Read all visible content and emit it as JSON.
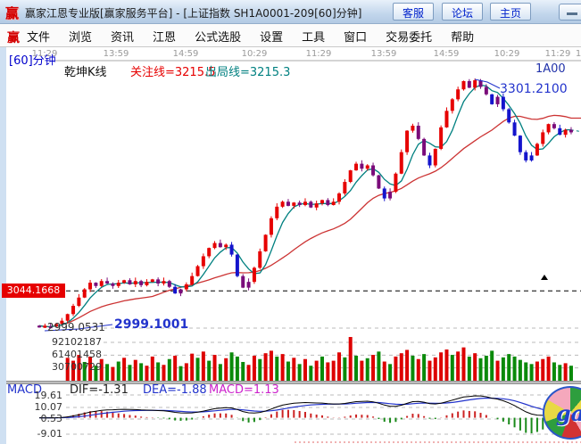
{
  "window": {
    "logo": "赢",
    "title": "赢家江恩专业版[赢家服务平台] - [上证指数  SH1A0001-209[60]分钟]",
    "buttons": [
      "客服",
      "论坛",
      "主页"
    ]
  },
  "menu": {
    "logo": "赢",
    "items": [
      "文件",
      "浏览",
      "资讯",
      "江恩",
      "公式选股",
      "设置",
      "工具",
      "窗口",
      "交易委托",
      "帮助"
    ]
  },
  "chart_header": {
    "period": "[60]分钟",
    "kline_label": "乾坤K线",
    "attention_line": "关注线=3215.5",
    "exit_line": "出局线=3215.3",
    "symbol_short": "1A00"
  },
  "time_axis": [
    "11:29",
    "13:59",
    "14:59",
    "10:29",
    "11:29",
    "13:59",
    "14:59",
    "10:29",
    "11:29",
    "1"
  ],
  "price_labels": {
    "marker_box": "3044.1668",
    "low_left": "2999.0531",
    "low_annotation": "2999.1001",
    "peak_annotation": "3301.2100"
  },
  "volume_axis": [
    "92102187",
    "61401458",
    "30700729"
  ],
  "macd_panel": {
    "name": "MACD",
    "dif": "DIF=-1.31",
    "dea": "DEA=-1.88",
    "macd": "MACD=1.13",
    "axis": [
      "19.61",
      "10.07",
      "0.53",
      "-9.01"
    ]
  },
  "logo_badge": "ga",
  "colors": {
    "up_candle": "#e60000",
    "down_candle": "#1414cc",
    "neutral_candle": "#7a0b7a",
    "ma_fast": "#008080",
    "ma_slow": "#cc3333",
    "vol_up": "#dd0000",
    "vol_down": "#0a8a0a",
    "attention_text": "#e60000",
    "exit_text": "#008080",
    "annotation_blue": "#2233cc",
    "macd_value": "#cc22cc"
  },
  "chart_data": {
    "type": "candlestick",
    "title": "上证指数 SH1A0001-209 [60]分钟 乾坤K线",
    "price_range": [
      2999.05,
      3301.21
    ],
    "reference_lines": {
      "black_dashed": 3044.1668,
      "gray_dashed": 2999.0531
    },
    "peak": 3301.21,
    "low": 2999.1001,
    "volume_scale": [
      30700729,
      61401458,
      92102187
    ],
    "macd_axis_values": [
      19.61,
      10.07,
      0.53,
      -9.01
    ],
    "candles": [
      [
        3002,
        "p"
      ],
      [
        2999.5,
        "u"
      ],
      [
        3001,
        "p"
      ],
      [
        3004,
        "u"
      ],
      [
        3008,
        "u"
      ],
      [
        3016,
        "u"
      ],
      [
        3026,
        "u"
      ],
      [
        3036,
        "u"
      ],
      [
        3046,
        "u"
      ],
      [
        3054,
        "u"
      ],
      [
        3050,
        "p"
      ],
      [
        3056,
        "u"
      ],
      [
        3053,
        "p"
      ],
      [
        3050,
        "p"
      ],
      [
        3054,
        "u"
      ],
      [
        3057,
        "u"
      ],
      [
        3052,
        "p"
      ],
      [
        3056,
        "u"
      ],
      [
        3051,
        "p"
      ],
      [
        3055,
        "u"
      ],
      [
        3058,
        "u"
      ],
      [
        3053,
        "p"
      ],
      [
        3056,
        "u"
      ],
      [
        3049,
        "p"
      ],
      [
        3041,
        "d"
      ],
      [
        3046,
        "p"
      ],
      [
        3052,
        "u"
      ],
      [
        3062,
        "u"
      ],
      [
        3074,
        "u"
      ],
      [
        3086,
        "u"
      ],
      [
        3096,
        "u"
      ],
      [
        3102,
        "u"
      ],
      [
        3097,
        "p"
      ],
      [
        3100,
        "u"
      ],
      [
        3088,
        "d"
      ],
      [
        3062,
        "d"
      ],
      [
        3048,
        "p"
      ],
      [
        3055,
        "p"
      ],
      [
        3072,
        "u"
      ],
      [
        3092,
        "u"
      ],
      [
        3112,
        "u"
      ],
      [
        3132,
        "u"
      ],
      [
        3146,
        "u"
      ],
      [
        3152,
        "u"
      ],
      [
        3147,
        "p"
      ],
      [
        3151,
        "u"
      ],
      [
        3148,
        "p"
      ],
      [
        3152,
        "u"
      ],
      [
        3145,
        "p"
      ],
      [
        3150,
        "u"
      ],
      [
        3154,
        "u"
      ],
      [
        3148,
        "p"
      ],
      [
        3152,
        "u"
      ],
      [
        3162,
        "u"
      ],
      [
        3176,
        "u"
      ],
      [
        3190,
        "u"
      ],
      [
        3198,
        "u"
      ],
      [
        3192,
        "p"
      ],
      [
        3196,
        "u"
      ],
      [
        3184,
        "p"
      ],
      [
        3168,
        "p"
      ],
      [
        3156,
        "d"
      ],
      [
        3164,
        "p"
      ],
      [
        3186,
        "u"
      ],
      [
        3212,
        "u"
      ],
      [
        3238,
        "u"
      ],
      [
        3244,
        "u"
      ],
      [
        3228,
        "p"
      ],
      [
        3208,
        "p"
      ],
      [
        3196,
        "d"
      ],
      [
        3216,
        "u"
      ],
      [
        3242,
        "u"
      ],
      [
        3262,
        "u"
      ],
      [
        3276,
        "u"
      ],
      [
        3288,
        "u"
      ],
      [
        3298,
        "u"
      ],
      [
        3290,
        "p"
      ],
      [
        3299,
        "u"
      ],
      [
        3291,
        "p"
      ],
      [
        3282,
        "p"
      ],
      [
        3270,
        "d"
      ],
      [
        3279,
        "p"
      ],
      [
        3264,
        "d"
      ],
      [
        3248,
        "d"
      ],
      [
        3232,
        "d"
      ],
      [
        3212,
        "d"
      ],
      [
        3202,
        "d"
      ],
      [
        3208,
        "d"
      ],
      [
        3222,
        "u"
      ],
      [
        3236,
        "u"
      ],
      [
        3246,
        "u"
      ],
      [
        3241,
        "p"
      ],
      [
        3233,
        "d"
      ],
      [
        3239,
        "u"
      ],
      [
        3236,
        "p"
      ]
    ],
    "volumes_millions": [
      [
        30,
        "r"
      ],
      [
        24,
        "g"
      ],
      [
        35,
        "r"
      ],
      [
        42,
        "r"
      ],
      [
        28,
        "g"
      ],
      [
        55,
        "r"
      ],
      [
        48,
        "r"
      ],
      [
        62,
        "r"
      ],
      [
        45,
        "g"
      ],
      [
        58,
        "r"
      ],
      [
        36,
        "g"
      ],
      [
        52,
        "r"
      ],
      [
        40,
        "g"
      ],
      [
        33,
        "r"
      ],
      [
        46,
        "g"
      ],
      [
        55,
        "r"
      ],
      [
        38,
        "g"
      ],
      [
        50,
        "r"
      ],
      [
        42,
        "g"
      ],
      [
        36,
        "r"
      ],
      [
        58,
        "r"
      ],
      [
        44,
        "g"
      ],
      [
        38,
        "r"
      ],
      [
        52,
        "g"
      ],
      [
        60,
        "r"
      ],
      [
        35,
        "g"
      ],
      [
        42,
        "r"
      ],
      [
        65,
        "r"
      ],
      [
        55,
        "g"
      ],
      [
        70,
        "r"
      ],
      [
        48,
        "g"
      ],
      [
        62,
        "r"
      ],
      [
        40,
        "g"
      ],
      [
        54,
        "r"
      ],
      [
        68,
        "g"
      ],
      [
        58,
        "g"
      ],
      [
        45,
        "g"
      ],
      [
        38,
        "r"
      ],
      [
        60,
        "r"
      ],
      [
        52,
        "g"
      ],
      [
        66,
        "r"
      ],
      [
        72,
        "r"
      ],
      [
        58,
        "g"
      ],
      [
        64,
        "r"
      ],
      [
        46,
        "g"
      ],
      [
        55,
        "r"
      ],
      [
        40,
        "g"
      ],
      [
        52,
        "r"
      ],
      [
        36,
        "g"
      ],
      [
        48,
        "r"
      ],
      [
        58,
        "g"
      ],
      [
        44,
        "r"
      ],
      [
        48,
        "r"
      ],
      [
        68,
        "r"
      ],
      [
        56,
        "g"
      ],
      [
        105,
        "r"
      ],
      [
        60,
        "g"
      ],
      [
        48,
        "r"
      ],
      [
        54,
        "g"
      ],
      [
        62,
        "r"
      ],
      [
        70,
        "g"
      ],
      [
        46,
        "r"
      ],
      [
        40,
        "g"
      ],
      [
        58,
        "r"
      ],
      [
        66,
        "r"
      ],
      [
        74,
        "r"
      ],
      [
        60,
        "g"
      ],
      [
        52,
        "r"
      ],
      [
        64,
        "g"
      ],
      [
        48,
        "r"
      ],
      [
        56,
        "r"
      ],
      [
        68,
        "r"
      ],
      [
        75,
        "r"
      ],
      [
        62,
        "g"
      ],
      [
        70,
        "r"
      ],
      [
        80,
        "r"
      ],
      [
        58,
        "g"
      ],
      [
        66,
        "r"
      ],
      [
        54,
        "g"
      ],
      [
        60,
        "g"
      ],
      [
        72,
        "g"
      ],
      [
        48,
        "r"
      ],
      [
        56,
        "g"
      ],
      [
        64,
        "g"
      ],
      [
        58,
        "g"
      ],
      [
        50,
        "g"
      ],
      [
        44,
        "g"
      ],
      [
        40,
        "g"
      ],
      [
        46,
        "r"
      ],
      [
        52,
        "r"
      ],
      [
        58,
        "r"
      ],
      [
        44,
        "g"
      ],
      [
        38,
        "g"
      ],
      [
        42,
        "r"
      ],
      [
        36,
        "g"
      ]
    ]
  }
}
